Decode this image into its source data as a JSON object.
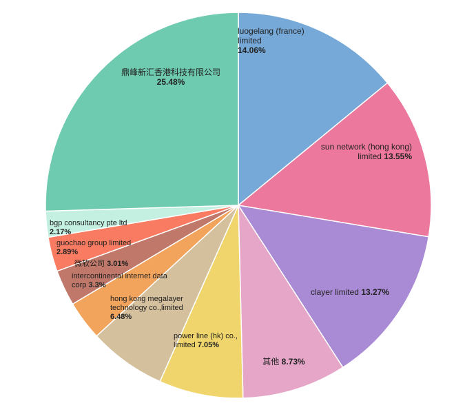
{
  "chart_data": {
    "type": "pie",
    "start": "top",
    "direction": "clockwise",
    "slices": [
      {
        "label": "luogelang (france) limited",
        "value": 14.06,
        "pct": "14.06%",
        "color": "#76a9d8"
      },
      {
        "label": "sun network (hong kong) limited",
        "value": 13.55,
        "pct": "13.55%",
        "color": "#ed789d"
      },
      {
        "label": "clayer limited",
        "value": 13.27,
        "pct": "13.27%",
        "color": "#a98ad4"
      },
      {
        "label": "其他",
        "value": 8.73,
        "pct": "8.73%",
        "color": "#e6a6c8"
      },
      {
        "label": "power line (hk) co., limited",
        "value": 7.05,
        "pct": "7.05%",
        "color": "#f0d56c"
      },
      {
        "label": "hong kong megalayer technology co.,limited",
        "value": 6.48,
        "pct": "6.48%",
        "color": "#d5c09e"
      },
      {
        "label": "intercontinental internet data corp",
        "value": 3.3,
        "pct": "3.3%",
        "color": "#f2a45d"
      },
      {
        "label": "微软公司",
        "value": 3.01,
        "pct": "3.01%",
        "color": "#bf786a"
      },
      {
        "label": "guochao group limited",
        "value": 2.89,
        "pct": "2.89%",
        "color": "#f97c62"
      },
      {
        "label": "bgp consultancy pte ltd",
        "value": 2.17,
        "pct": "2.17%",
        "color": "#c3f0e1"
      },
      {
        "label": "鼎峰新汇香港科技有限公司",
        "value": 25.48,
        "pct": "25.48%",
        "color": "#6ecbaf"
      }
    ]
  }
}
